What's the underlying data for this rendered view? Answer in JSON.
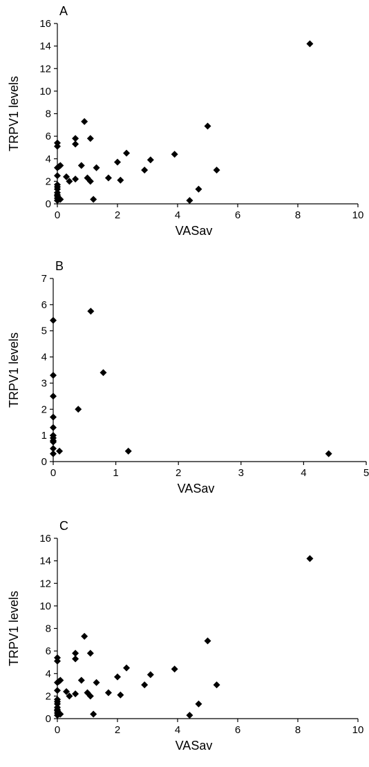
{
  "chart_data": [
    {
      "type": "scatter",
      "panel": "A",
      "xlabel": "VASav",
      "ylabel": "TRPV1 levels",
      "xlim": [
        0,
        10
      ],
      "ylim": [
        0,
        16
      ],
      "xticks": [
        0,
        2,
        4,
        6,
        8,
        10
      ],
      "yticks": [
        0,
        2,
        4,
        6,
        8,
        10,
        12,
        14,
        16
      ],
      "points": [
        [
          0,
          5.4
        ],
        [
          0,
          5.1
        ],
        [
          0,
          3.2
        ],
        [
          0,
          2.5
        ],
        [
          0,
          1.7
        ],
        [
          0,
          1.5
        ],
        [
          0,
          1.3
        ],
        [
          0,
          1.0
        ],
        [
          0,
          0.8
        ],
        [
          0,
          0.7
        ],
        [
          0,
          0.5
        ],
        [
          0,
          0.3
        ],
        [
          0.05,
          0.4
        ],
        [
          0.05,
          3.3
        ],
        [
          0.1,
          3.4
        ],
        [
          0.1,
          0.4
        ],
        [
          0.3,
          2.4
        ],
        [
          0.4,
          2.0
        ],
        [
          0.6,
          5.8
        ],
        [
          0.6,
          5.3
        ],
        [
          0.6,
          2.2
        ],
        [
          0.8,
          3.4
        ],
        [
          0.9,
          7.3
        ],
        [
          1.0,
          2.3
        ],
        [
          1.1,
          5.8
        ],
        [
          1.1,
          2.0
        ],
        [
          1.2,
          0.4
        ],
        [
          1.3,
          3.2
        ],
        [
          1.7,
          2.3
        ],
        [
          2.0,
          3.7
        ],
        [
          2.1,
          2.1
        ],
        [
          2.3,
          4.5
        ],
        [
          2.9,
          3.0
        ],
        [
          3.1,
          3.9
        ],
        [
          3.9,
          4.4
        ],
        [
          4.4,
          0.3
        ],
        [
          4.7,
          1.3
        ],
        [
          5.0,
          6.9
        ],
        [
          5.3,
          3.0
        ],
        [
          8.4,
          14.2
        ]
      ]
    },
    {
      "type": "scatter",
      "panel": "B",
      "xlabel": "VASav",
      "ylabel": "TRPV1 levels",
      "xlim": [
        0,
        5
      ],
      "ylim": [
        0,
        7
      ],
      "xticks": [
        0,
        1,
        2,
        3,
        4,
        5
      ],
      "yticks": [
        0,
        1,
        2,
        3,
        4,
        5,
        6,
        7
      ],
      "points": [
        [
          0,
          5.4
        ],
        [
          0,
          3.3
        ],
        [
          0,
          2.5
        ],
        [
          0,
          1.7
        ],
        [
          0,
          1.3
        ],
        [
          0,
          1.0
        ],
        [
          0,
          0.9
        ],
        [
          0,
          0.8
        ],
        [
          0,
          0.75
        ],
        [
          0,
          0.5
        ],
        [
          0,
          0.3
        ],
        [
          0.1,
          0.4
        ],
        [
          0.4,
          2.0
        ],
        [
          0.6,
          5.75
        ],
        [
          0.8,
          3.4
        ],
        [
          1.2,
          0.4
        ],
        [
          4.4,
          0.3
        ]
      ]
    },
    {
      "type": "scatter",
      "panel": "C",
      "xlabel": "VASav",
      "ylabel": "TRPV1 levels",
      "xlim": [
        0,
        10
      ],
      "ylim": [
        0,
        16
      ],
      "xticks": [
        0,
        2,
        4,
        6,
        8,
        10
      ],
      "yticks": [
        0,
        2,
        4,
        6,
        8,
        10,
        12,
        14,
        16
      ],
      "points": [
        [
          0,
          5.4
        ],
        [
          0,
          5.1
        ],
        [
          0,
          3.2
        ],
        [
          0,
          2.5
        ],
        [
          0,
          1.7
        ],
        [
          0,
          1.5
        ],
        [
          0,
          1.3
        ],
        [
          0,
          1.0
        ],
        [
          0,
          0.8
        ],
        [
          0,
          0.7
        ],
        [
          0,
          0.5
        ],
        [
          0,
          0.3
        ],
        [
          0.05,
          0.4
        ],
        [
          0.05,
          3.3
        ],
        [
          0.1,
          3.4
        ],
        [
          0.1,
          0.4
        ],
        [
          0.3,
          2.4
        ],
        [
          0.4,
          2.0
        ],
        [
          0.6,
          5.8
        ],
        [
          0.6,
          5.3
        ],
        [
          0.6,
          2.2
        ],
        [
          0.8,
          3.4
        ],
        [
          0.9,
          7.3
        ],
        [
          1.0,
          2.3
        ],
        [
          1.1,
          5.8
        ],
        [
          1.1,
          2.0
        ],
        [
          1.2,
          0.4
        ],
        [
          1.3,
          3.2
        ],
        [
          1.7,
          2.3
        ],
        [
          2.0,
          3.7
        ],
        [
          2.1,
          2.1
        ],
        [
          2.3,
          4.5
        ],
        [
          2.9,
          3.0
        ],
        [
          3.1,
          3.9
        ],
        [
          3.9,
          4.4
        ],
        [
          4.4,
          0.3
        ],
        [
          4.7,
          1.3
        ],
        [
          5.0,
          6.9
        ],
        [
          5.3,
          3.0
        ],
        [
          8.4,
          14.2
        ]
      ]
    }
  ]
}
